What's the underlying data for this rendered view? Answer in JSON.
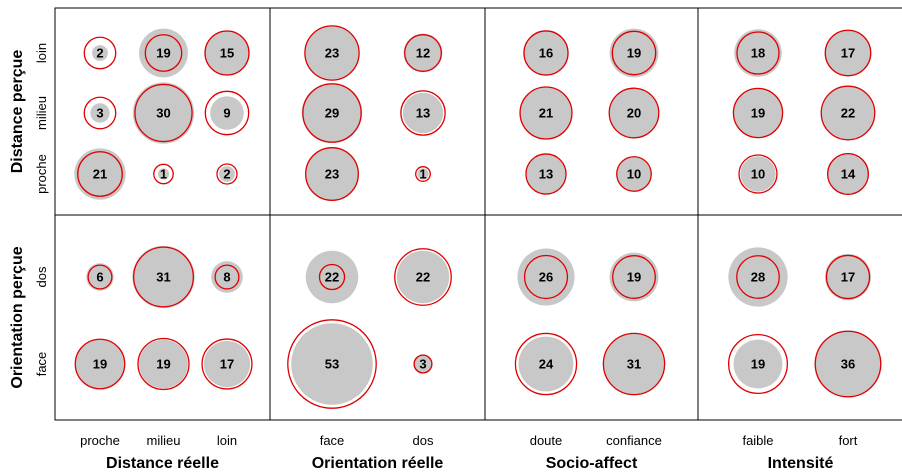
{
  "chart_data": {
    "type": "bubble-matrix",
    "fill_color": "#c8c8c8",
    "ring_color": "#e00000",
    "row_groups": [
      {
        "key": "distance_percue",
        "label": "Distance perçue",
        "categories": [
          "loin",
          "milieu",
          "proche"
        ]
      },
      {
        "key": "orientation_percue",
        "label": "Orientation perçue",
        "categories": [
          "dos",
          "face"
        ]
      }
    ],
    "column_groups": [
      {
        "key": "distance_reelle",
        "label": "Distance réelle",
        "categories": [
          "proche",
          "milieu",
          "loin"
        ]
      },
      {
        "key": "orientation_reelle",
        "label": "Orientation réelle",
        "categories": [
          "face",
          "dos"
        ]
      },
      {
        "key": "socio_affect",
        "label": "Socio-affect",
        "categories": [
          "doute",
          "confiance"
        ]
      },
      {
        "key": "intensite",
        "label": "Intensité",
        "categories": [
          "faible",
          "fort"
        ]
      }
    ],
    "panels": [
      {
        "row_group": 0,
        "column_group": 0,
        "counts": [
          [
            2,
            19,
            15
          ],
          [
            3,
            30,
            9
          ],
          [
            21,
            1,
            2
          ]
        ],
        "expected": [
          [
            7.9,
            10.6,
            15.4
          ],
          [
            7.9,
            26.0,
            15.0
          ],
          [
            15.8,
            3.0,
            3.2
          ]
        ]
      },
      {
        "row_group": 0,
        "column_group": 1,
        "counts": [
          [
            23,
            12
          ],
          [
            29,
            13
          ],
          [
            23,
            1
          ]
        ],
        "expected": [
          [
            23.4,
            10.7
          ],
          [
            27.1,
            15.6
          ],
          [
            22.1,
            1.7
          ]
        ]
      },
      {
        "row_group": 0,
        "column_group": 2,
        "counts": [
          [
            16,
            19
          ],
          [
            21,
            20
          ],
          [
            13,
            10
          ]
        ],
        "expected": [
          [
            15.5,
            15.0
          ],
          [
            21.5,
            19.6
          ],
          [
            12.8,
            9.5
          ]
        ]
      },
      {
        "row_group": 0,
        "column_group": 3,
        "counts": [
          [
            18,
            17
          ],
          [
            19,
            22
          ],
          [
            10,
            14
          ]
        ],
        "expected": [
          [
            14.1,
            16.5
          ],
          [
            19.3,
            22.9
          ],
          [
            11.5,
            13.2
          ]
        ]
      },
      {
        "row_group": 1,
        "column_group": 0,
        "counts": [
          [
            6,
            31,
            8
          ],
          [
            19,
            19,
            17
          ]
        ],
        "expected": [
          [
            4.5,
            28.4,
            4.5
          ],
          [
            19.5,
            20.7,
            19.8
          ]
        ]
      },
      {
        "row_group": 1,
        "column_group": 1,
        "counts": [
          [
            22,
            22
          ],
          [
            53,
            3
          ]
        ],
        "expected": [
          [
            5.0,
            25.4
          ],
          [
            62.3,
            2.5
          ]
        ]
      },
      {
        "row_group": 1,
        "column_group": 2,
        "counts": [
          [
            26,
            19
          ],
          [
            24,
            31
          ]
        ],
        "expected": [
          [
            14.7,
            14.5
          ],
          [
            29.8,
            29.9
          ]
        ]
      },
      {
        "row_group": 1,
        "column_group": 3,
        "counts": [
          [
            28,
            17
          ],
          [
            19,
            36
          ]
        ],
        "expected": [
          [
            14.4,
            14.8
          ],
          [
            27.5,
            34.2
          ]
        ]
      }
    ]
  }
}
